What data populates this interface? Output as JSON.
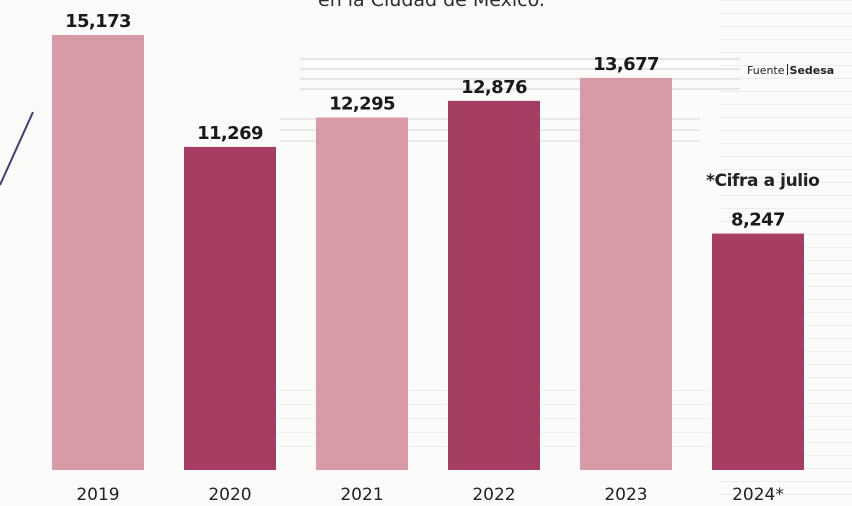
{
  "title_fragment": "en la Ciudad de México.",
  "source": {
    "prefix": "Fuente",
    "name": "Sedesa"
  },
  "note": "*Cifra a julio",
  "chart_data": {
    "type": "bar",
    "title": "",
    "xlabel": "",
    "ylabel": "",
    "categories": [
      "2019",
      "2020",
      "2021",
      "2022",
      "2023",
      "2024*"
    ],
    "values": [
      15173,
      11269,
      12295,
      12876,
      13677,
      8247
    ],
    "value_labels": [
      "15,173",
      "11,269",
      "12,295",
      "12,876",
      "13,677",
      "8,247"
    ],
    "ylim": [
      0,
      15500
    ],
    "grid": false,
    "legend": "none",
    "colors": [
      "#d99aa7",
      "#a63e63",
      "#d99aa7",
      "#a63e63",
      "#d99aa7",
      "#a63e63"
    ]
  }
}
